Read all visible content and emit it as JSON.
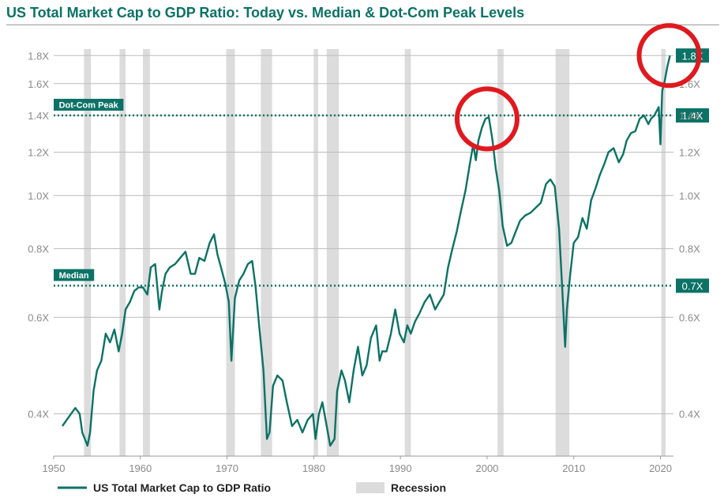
{
  "title": "US Total Market Cap to GDP Ratio: Today vs. Median & Dot-Com Peak Levels",
  "colors": {
    "line": "#0b7266",
    "recession": "#dcdcdc",
    "grid": "#bdbdbd",
    "highlight_circle": "#e0191f",
    "tick": "#8a8a8a"
  },
  "chart_data": {
    "type": "line",
    "title": "US Total Market Cap to GDP Ratio: Today vs. Median & Dot-Com Peak Levels",
    "y_scale": "log",
    "ylim": [
      0.335,
      1.85
    ],
    "xlim": [
      1950,
      2021.5
    ],
    "y_ticks": [
      {
        "value": 0.4,
        "label": "0.4X"
      },
      {
        "value": 0.6,
        "label": "0.6X"
      },
      {
        "value": 0.8,
        "label": "0.8X"
      },
      {
        "value": 1.0,
        "label": "1.0X"
      },
      {
        "value": 1.2,
        "label": "1.2X"
      },
      {
        "value": 1.4,
        "label": "1.4X"
      },
      {
        "value": 1.6,
        "label": "1.6X"
      },
      {
        "value": 1.8,
        "label": "1.8X"
      }
    ],
    "x_ticks": [
      {
        "value": 1950,
        "label": "1950"
      },
      {
        "value": 1960,
        "label": "1960"
      },
      {
        "value": 1970,
        "label": "1970"
      },
      {
        "value": 1980,
        "label": "1980"
      },
      {
        "value": 1990,
        "label": "1990"
      },
      {
        "value": 2000,
        "label": "2000"
      },
      {
        "value": 2010,
        "label": "2010"
      },
      {
        "value": 2020,
        "label": "2020"
      }
    ],
    "grid": true,
    "legend_position": "bottom",
    "series": [
      {
        "name": "US Total Market Cap to GDP Ratio",
        "x": [
          1951.0,
          1951.5,
          1952.0,
          1952.5,
          1953.0,
          1953.3,
          1953.6,
          1953.9,
          1954.2,
          1954.6,
          1955.0,
          1955.5,
          1956.0,
          1956.5,
          1957.0,
          1957.5,
          1957.9,
          1958.3,
          1958.8,
          1959.3,
          1959.8,
          1960.3,
          1960.8,
          1961.2,
          1961.7,
          1962.2,
          1962.5,
          1962.9,
          1963.4,
          1964.0,
          1964.6,
          1965.2,
          1965.8,
          1966.3,
          1966.8,
          1967.4,
          1968.0,
          1968.5,
          1968.9,
          1969.3,
          1969.8,
          1970.2,
          1970.5,
          1970.9,
          1971.4,
          1971.9,
          1972.4,
          1972.9,
          1973.3,
          1973.7,
          1974.2,
          1974.6,
          1974.9,
          1975.3,
          1975.8,
          1976.4,
          1976.9,
          1977.5,
          1978.1,
          1978.7,
          1979.3,
          1979.9,
          1980.2,
          1980.6,
          1981.0,
          1981.5,
          1981.9,
          1982.4,
          1982.7,
          1983.2,
          1983.6,
          1984.1,
          1984.6,
          1985.1,
          1985.6,
          1986.1,
          1986.6,
          1987.2,
          1987.6,
          1987.9,
          1988.4,
          1988.9,
          1989.4,
          1989.9,
          1990.4,
          1990.8,
          1991.2,
          1991.7,
          1992.2,
          1992.8,
          1993.4,
          1994.0,
          1994.5,
          1995.0,
          1995.5,
          1996.0,
          1996.5,
          1997.0,
          1997.5,
          1998.0,
          1998.4,
          1998.7,
          1999.0,
          1999.4,
          1999.8,
          2000.2,
          2000.6,
          2001.0,
          2001.4,
          2001.8,
          2002.3,
          2002.8,
          2003.3,
          2003.8,
          2004.4,
          2005.0,
          2005.6,
          2006.2,
          2006.8,
          2007.3,
          2007.8,
          2008.3,
          2008.7,
          2009.0,
          2009.2,
          2009.6,
          2010.0,
          2010.5,
          2011.0,
          2011.5,
          2012.0,
          2012.5,
          2013.0,
          2013.5,
          2014.0,
          2014.6,
          2015.2,
          2015.7,
          2016.1,
          2016.6,
          2017.1,
          2017.6,
          2018.1,
          2018.6,
          2018.9,
          2019.3,
          2019.8,
          2020.0,
          2020.2,
          2020.5,
          2020.8,
          2021.1
        ],
        "values": [
          0.38,
          0.39,
          0.4,
          0.41,
          0.4,
          0.37,
          0.36,
          0.35,
          0.37,
          0.44,
          0.48,
          0.5,
          0.56,
          0.54,
          0.57,
          0.52,
          0.56,
          0.62,
          0.64,
          0.67,
          0.68,
          0.68,
          0.66,
          0.74,
          0.75,
          0.62,
          0.67,
          0.72,
          0.74,
          0.75,
          0.77,
          0.79,
          0.72,
          0.72,
          0.77,
          0.76,
          0.82,
          0.85,
          0.78,
          0.74,
          0.69,
          0.64,
          0.5,
          0.65,
          0.7,
          0.72,
          0.75,
          0.76,
          0.68,
          0.58,
          0.48,
          0.36,
          0.37,
          0.45,
          0.47,
          0.46,
          0.42,
          0.38,
          0.39,
          0.37,
          0.39,
          0.4,
          0.36,
          0.4,
          0.42,
          0.38,
          0.35,
          0.36,
          0.44,
          0.48,
          0.46,
          0.42,
          0.48,
          0.53,
          0.47,
          0.49,
          0.55,
          0.58,
          0.5,
          0.52,
          0.52,
          0.56,
          0.62,
          0.56,
          0.54,
          0.58,
          0.56,
          0.59,
          0.61,
          0.64,
          0.66,
          0.62,
          0.64,
          0.66,
          0.74,
          0.8,
          0.86,
          0.94,
          1.02,
          1.14,
          1.24,
          1.16,
          1.26,
          1.33,
          1.38,
          1.39,
          1.27,
          1.12,
          1.02,
          0.88,
          0.81,
          0.82,
          0.86,
          0.9,
          0.92,
          0.93,
          0.95,
          0.97,
          1.05,
          1.07,
          1.04,
          0.87,
          0.66,
          0.53,
          0.62,
          0.72,
          0.82,
          0.84,
          0.91,
          0.87,
          0.98,
          1.03,
          1.09,
          1.14,
          1.2,
          1.22,
          1.15,
          1.19,
          1.26,
          1.3,
          1.31,
          1.38,
          1.4,
          1.35,
          1.38,
          1.4,
          1.45,
          1.24,
          1.55,
          1.62,
          1.72,
          1.8
        ]
      }
    ],
    "recessions": [
      {
        "start": 1953.5,
        "end": 1954.3
      },
      {
        "start": 1957.6,
        "end": 1958.3
      },
      {
        "start": 1960.3,
        "end": 1961.1
      },
      {
        "start": 1969.9,
        "end": 1970.9
      },
      {
        "start": 1973.9,
        "end": 1975.2
      },
      {
        "start": 1980.0,
        "end": 1980.5
      },
      {
        "start": 1981.5,
        "end": 1982.9
      },
      {
        "start": 1990.5,
        "end": 1991.2
      },
      {
        "start": 2001.2,
        "end": 2001.9
      },
      {
        "start": 2007.9,
        "end": 2009.5
      },
      {
        "start": 2020.1,
        "end": 2020.6
      }
    ],
    "reference_lines": [
      {
        "name": "Dot-Com Peak",
        "value": 1.4,
        "label": "Dot-Com Peak",
        "value_label": "1.4X"
      },
      {
        "name": "Median",
        "value": 0.685,
        "label": "Median",
        "value_label": "0.7X"
      }
    ],
    "current_value": {
      "value": 1.8,
      "label": "1.8X"
    },
    "highlight_circles": [
      {
        "name": "dot-com-peak-circle",
        "x": 2000.0,
        "y": 1.38
      },
      {
        "name": "today-circle",
        "x": 2021.0,
        "y": 1.8
      }
    ],
    "legend": [
      {
        "label": "US Total Market Cap to GDP Ratio",
        "kind": "line"
      },
      {
        "label": "Recession",
        "kind": "box"
      }
    ]
  }
}
